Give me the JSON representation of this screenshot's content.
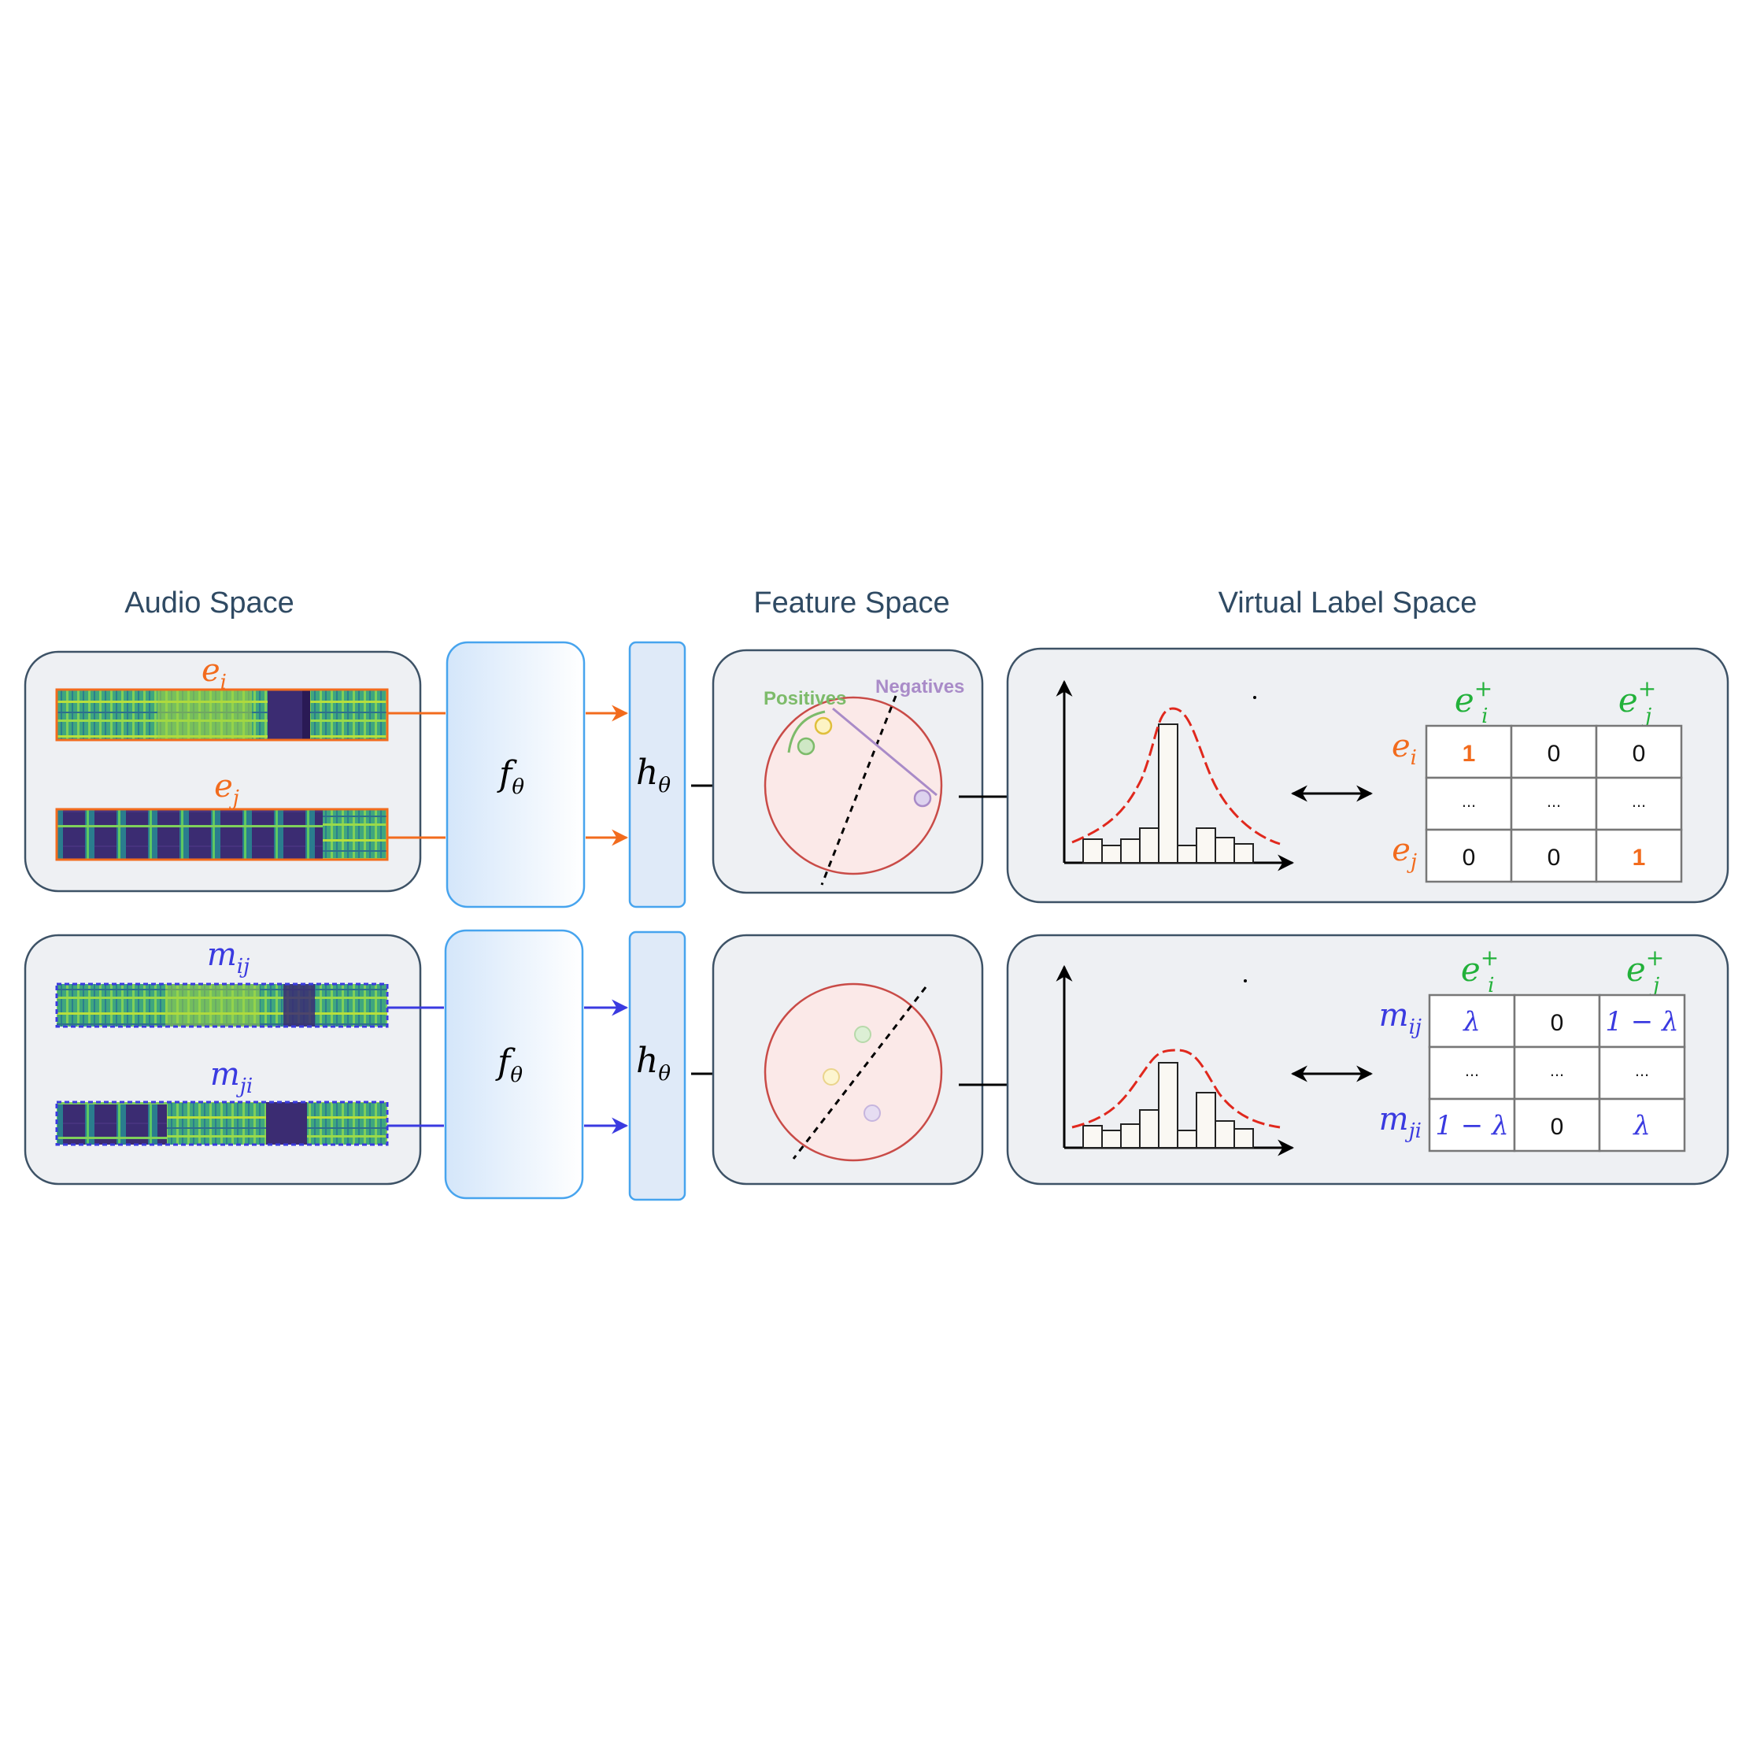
{
  "headers": {
    "audio_space": "Audio Space",
    "feature_space": "Feature Space",
    "virtual_label_space": "Virtual Label Space"
  },
  "rows": [
    {
      "kind": "original",
      "accent": "#f26b1d",
      "inputs": [
        {
          "base": "e",
          "sub": "i"
        },
        {
          "base": "e",
          "sub": "j"
        }
      ],
      "encoder": {
        "base": "f",
        "sub": "θ"
      },
      "head": {
        "base": "h",
        "sub": "θ"
      },
      "feature_labels": {
        "positives": "Positives",
        "negatives": "Negatives"
      },
      "matrix": {
        "col_headers": [
          {
            "base": "e",
            "sub": "i",
            "sup": "+"
          },
          {
            "base": "e",
            "sub": "j",
            "sup": "+"
          }
        ],
        "row_labels": [
          {
            "base": "e",
            "sub": "i"
          },
          {
            "base": "",
            "sub": ""
          },
          {
            "base": "e",
            "sub": "j"
          }
        ],
        "cells": [
          [
            "1",
            "0",
            "0"
          ],
          [
            "...",
            "...",
            "..."
          ],
          [
            "0",
            "0",
            "1"
          ]
        ]
      }
    },
    {
      "kind": "mixed",
      "accent": "#3a3ae0",
      "inputs": [
        {
          "base": "m",
          "sub": "ij"
        },
        {
          "base": "m",
          "sub": "ji"
        }
      ],
      "encoder": {
        "base": "f",
        "sub": "θ"
      },
      "head": {
        "base": "h",
        "sub": "θ"
      },
      "matrix": {
        "col_headers": [
          {
            "base": "e",
            "sub": "i",
            "sup": "+"
          },
          {
            "base": "e",
            "sub": "j",
            "sup": "+"
          }
        ],
        "row_labels": [
          {
            "base": "m",
            "sub": "ij"
          },
          {
            "base": "",
            "sub": ""
          },
          {
            "base": "m",
            "sub": "ji"
          }
        ],
        "cells": [
          [
            "λ",
            "0",
            "1 − λ"
          ],
          [
            "...",
            "...",
            "..."
          ],
          [
            "1 − λ",
            "0",
            "λ"
          ]
        ]
      }
    }
  ],
  "colors": {
    "panel_fill": "#eef0f3",
    "panel_stroke": "#3d5266",
    "header_text": "#2f4a63",
    "encoder_fill": "#e6f0fb",
    "encoder_stroke": "#47a4ee",
    "positive": "#7dbb6a",
    "negative": "#a98bc8",
    "label_green": "#22b13a",
    "curve": "#e0281d",
    "circle_fill": "#fbe9e8",
    "circle_stroke": "#c94b47"
  }
}
